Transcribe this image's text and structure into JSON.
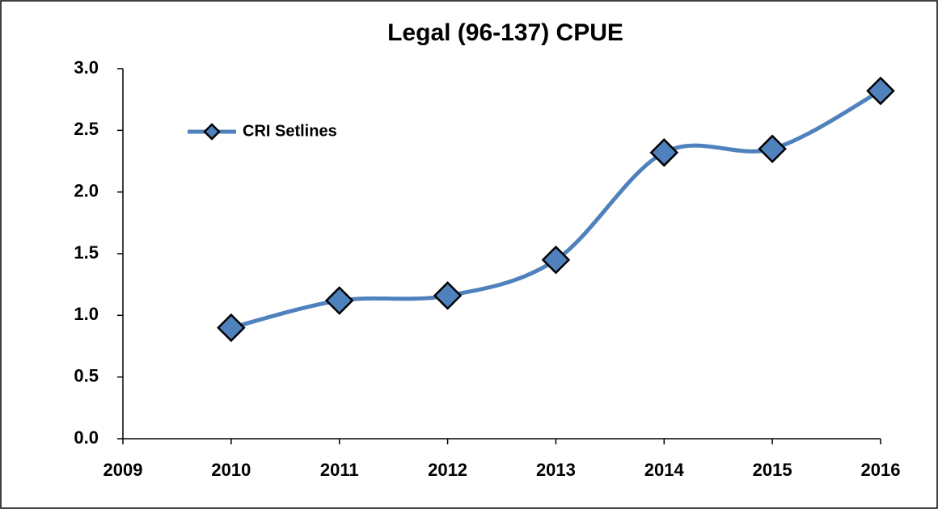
{
  "chart_data": {
    "type": "line",
    "title": "Legal (96-137) CPUE",
    "x": [
      2010,
      2011,
      2012,
      2013,
      2014,
      2015,
      2016
    ],
    "series": [
      {
        "name": "CRI Setlines",
        "color": "#4f81bd",
        "values": [
          0.9,
          1.12,
          1.16,
          1.45,
          2.32,
          2.35,
          2.82
        ]
      }
    ],
    "xlim": [
      2009,
      2016
    ],
    "xticks": [
      2009,
      2010,
      2011,
      2012,
      2013,
      2014,
      2015,
      2016
    ],
    "ylim": [
      0,
      3
    ],
    "yticks": [
      {
        "value": 0,
        "label": "0.0"
      },
      0.5,
      {
        "value": 1,
        "label": "1.0"
      },
      1.5,
      {
        "value": 2,
        "label": "2.0"
      },
      2.5,
      {
        "value": 3,
        "label": "3.0"
      }
    ],
    "smooth": true,
    "legend": "upper left"
  }
}
